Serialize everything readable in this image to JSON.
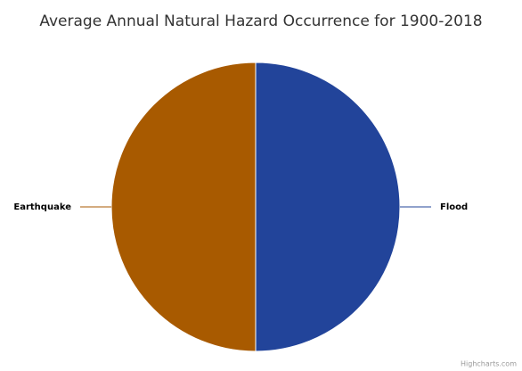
{
  "chart_data": {
    "type": "pie",
    "title": "Average Annual Natural Hazard Occurrence for 1900-2018",
    "categories": [
      "Flood",
      "Earthquake"
    ],
    "values": [
      50,
      50
    ],
    "colors": [
      "#22449a",
      "#a85a00"
    ],
    "credits": "Highcharts.com"
  }
}
